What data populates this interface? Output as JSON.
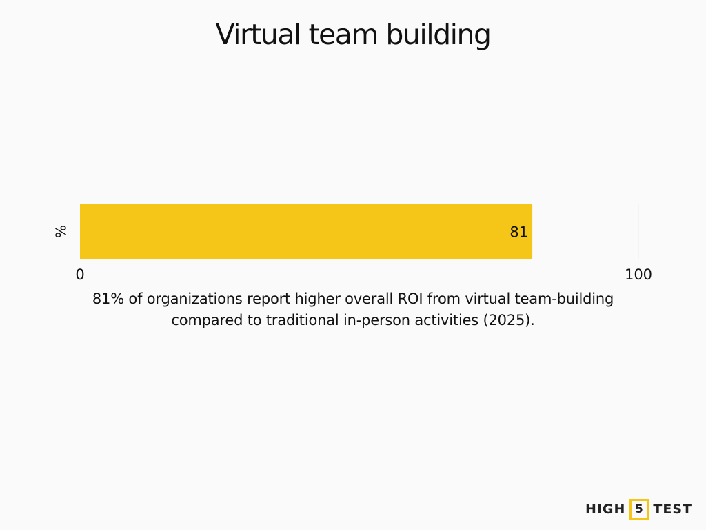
{
  "chart_data": {
    "type": "bar",
    "orientation": "horizontal",
    "title": "Virtual team building",
    "categories": [
      "%"
    ],
    "values": [
      81
    ],
    "data_labels": [
      "81"
    ],
    "xlim": [
      0,
      100
    ],
    "x_ticks": [
      "0",
      "100"
    ],
    "grid": false,
    "bar_color": "#F5C518",
    "caption": "81% of organizations report higher overall ROI from virtual team-building compared to traditional in-person activities (2025)."
  },
  "brand": {
    "left": "HIGH",
    "number": "5",
    "right": "TEST",
    "accent": "#F5C518"
  }
}
